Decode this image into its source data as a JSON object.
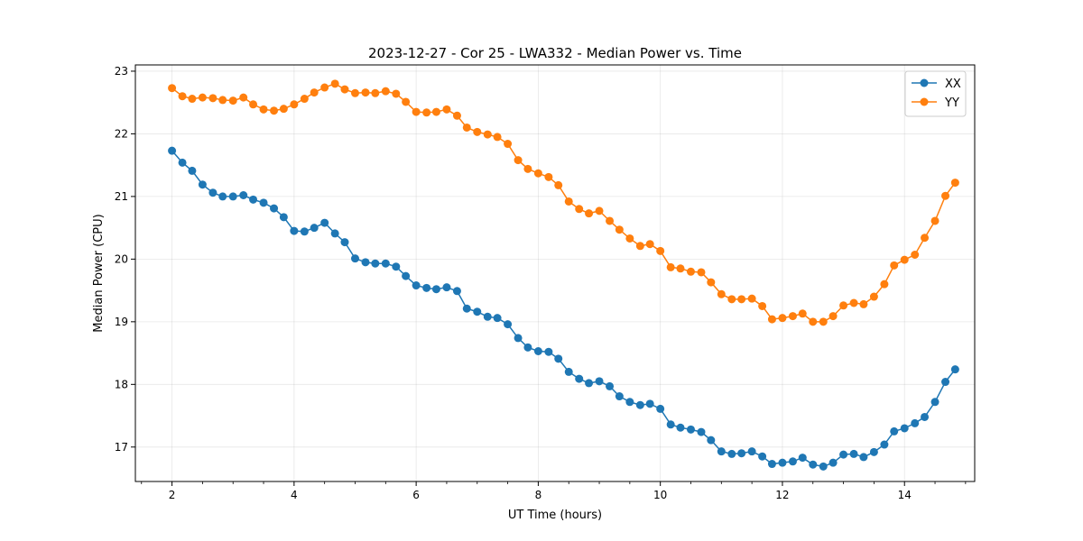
{
  "chart_data": {
    "type": "line",
    "title": "2023-12-27 - Cor 25 - LWA332 - Median Power vs. Time",
    "xlabel": "UT Time (hours)",
    "ylabel": "Median Power (CPU)",
    "xlim": [
      1.4,
      15.15
    ],
    "ylim": [
      16.45,
      23.1
    ],
    "x_ticks": [
      2,
      4,
      6,
      8,
      10,
      12,
      14
    ],
    "x_minor_step": 0.5,
    "y_ticks": [
      17,
      18,
      19,
      20,
      21,
      22,
      23
    ],
    "grid": true,
    "legend_position": "top-right",
    "x": [
      2.0,
      2.17,
      2.33,
      2.5,
      2.67,
      2.83,
      3.0,
      3.17,
      3.33,
      3.5,
      3.67,
      3.83,
      4.0,
      4.17,
      4.33,
      4.5,
      4.67,
      4.83,
      5.0,
      5.17,
      5.33,
      5.5,
      5.67,
      5.83,
      6.0,
      6.17,
      6.33,
      6.5,
      6.67,
      6.83,
      7.0,
      7.17,
      7.33,
      7.5,
      7.67,
      7.83,
      8.0,
      8.17,
      8.33,
      8.5,
      8.67,
      8.83,
      9.0,
      9.17,
      9.33,
      9.5,
      9.67,
      9.83,
      10.0,
      10.17,
      10.33,
      10.5,
      10.67,
      10.83,
      11.0,
      11.17,
      11.33,
      11.5,
      11.67,
      11.83,
      12.0,
      12.17,
      12.33,
      12.5,
      12.67,
      12.83,
      13.0,
      13.17,
      13.33,
      13.5,
      13.67,
      13.83,
      14.0,
      14.17,
      14.33,
      14.5,
      14.67,
      14.83
    ],
    "series": [
      {
        "name": "XX",
        "color": "#1f77b4",
        "values": [
          21.73,
          21.54,
          21.41,
          21.19,
          21.06,
          21.0,
          21.0,
          21.02,
          20.95,
          20.9,
          20.81,
          20.67,
          20.45,
          20.44,
          20.5,
          20.58,
          20.41,
          20.27,
          20.01,
          19.95,
          19.93,
          19.93,
          19.88,
          19.73,
          19.58,
          19.54,
          19.52,
          19.55,
          19.49,
          19.21,
          19.16,
          19.08,
          19.06,
          18.96,
          18.74,
          18.59,
          18.53,
          18.52,
          18.41,
          18.2,
          18.09,
          18.02,
          18.05,
          17.97,
          17.81,
          17.72,
          17.67,
          17.69,
          17.61,
          17.36,
          17.31,
          17.28,
          17.24,
          17.11,
          16.93,
          16.89,
          16.9,
          16.93,
          16.85,
          16.73,
          16.75,
          16.77,
          16.83,
          16.72,
          16.69,
          16.75,
          16.88,
          16.89,
          16.84,
          16.92,
          17.04,
          17.25,
          17.3,
          17.38,
          17.48,
          17.72,
          18.04,
          18.24
        ]
      },
      {
        "name": "YY",
        "color": "#ff7f0e",
        "values": [
          22.73,
          22.6,
          22.56,
          22.58,
          22.57,
          22.54,
          22.53,
          22.58,
          22.47,
          22.39,
          22.37,
          22.4,
          22.47,
          22.56,
          22.66,
          22.74,
          22.8,
          22.71,
          22.65,
          22.66,
          22.65,
          22.68,
          22.64,
          22.51,
          22.35,
          22.34,
          22.35,
          22.39,
          22.29,
          22.1,
          22.03,
          21.99,
          21.95,
          21.84,
          21.58,
          21.44,
          21.37,
          21.31,
          21.18,
          20.92,
          20.8,
          20.73,
          20.77,
          20.61,
          20.47,
          20.33,
          20.21,
          20.24,
          20.13,
          19.87,
          19.85,
          19.8,
          19.79,
          19.63,
          19.44,
          19.36,
          19.36,
          19.37,
          19.25,
          19.04,
          19.06,
          19.09,
          19.13,
          19.0,
          19.0,
          19.09,
          19.26,
          19.3,
          19.28,
          19.4,
          19.6,
          19.9,
          19.99,
          20.07,
          20.34,
          20.61,
          21.01,
          21.22
        ]
      }
    ]
  }
}
